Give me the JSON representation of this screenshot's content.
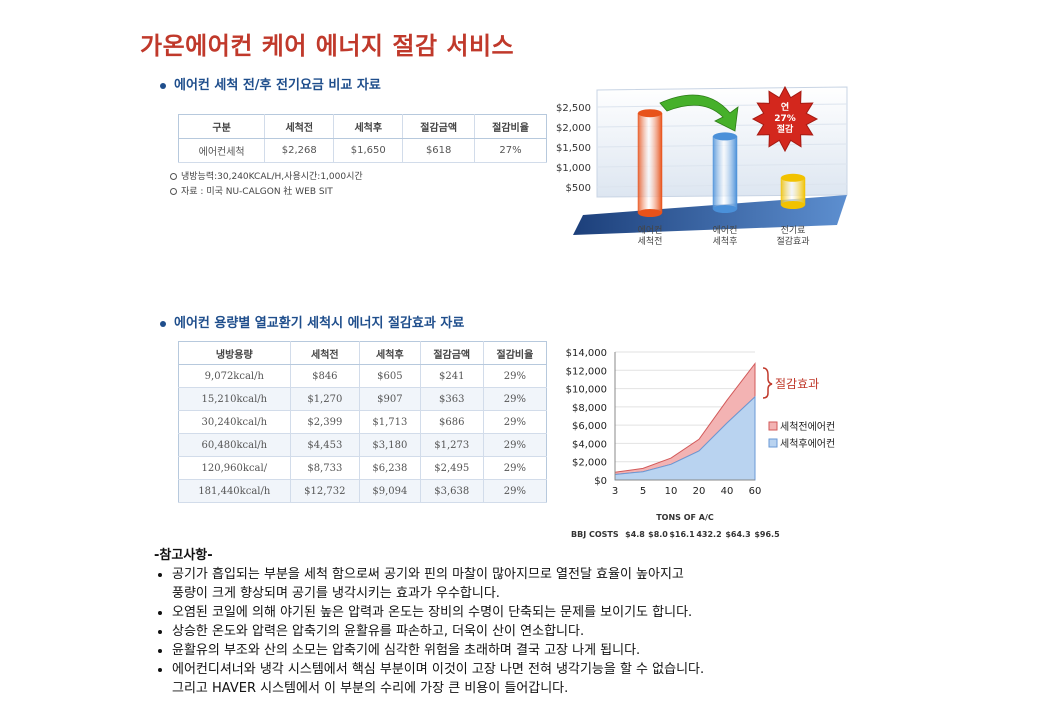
{
  "title": "가온에어컨 케어 에너지 절감 서비스",
  "section1": {
    "heading": "에어컨 세척 전/후 전기요금 비교 자료",
    "table": {
      "headers": [
        "구분",
        "세척전",
        "세척후",
        "절감금액",
        "절감비율"
      ],
      "rows": [
        [
          "에어컨세척",
          "$2,268",
          "$1,650",
          "$618",
          "27%"
        ]
      ]
    },
    "notes": [
      "냉방능력:30,240KCAL/H,사용시간:1,000시간",
      "자료 : 미국 NU-CALGON 社 WEB SIT"
    ]
  },
  "section2": {
    "heading": "에어컨 용량별 열교환기 세척시 에너지 절감효과 자료",
    "table": {
      "headers": [
        "냉방용량",
        "세척전",
        "세척후",
        "절감금액",
        "절감비율"
      ],
      "rows": [
        [
          "9,072kcal/h",
          "$846",
          "$605",
          "$241",
          "29%"
        ],
        [
          "15,210kcal/h",
          "$1,270",
          "$907",
          "$363",
          "29%"
        ],
        [
          "30,240kcal/h",
          "$2,399",
          "$1,713",
          "$686",
          "29%"
        ],
        [
          "60,480kcal/h",
          "$4,453",
          "$3,180",
          "$1,273",
          "29%"
        ],
        [
          "120,960kcal/",
          "$8,733",
          "$6,238",
          "$2,495",
          "29%"
        ],
        [
          "181,440kcal/h",
          "$12,732",
          "$9,094",
          "$3,638",
          "29%"
        ]
      ]
    }
  },
  "chart_data": [
    {
      "type": "bar",
      "categories": [
        "에어컨\n세척전",
        "에어컨\n세척후",
        "전기료\n절감효과"
      ],
      "values": [
        2268,
        1650,
        618
      ],
      "yticks": [
        "$500",
        "$1,000",
        "$1,500",
        "$2,000",
        "$2,500"
      ],
      "ylim": [
        0,
        2500
      ],
      "badge": [
        "연",
        "27%",
        "절감"
      ],
      "colors": [
        "#e8521a",
        "#4a90d9",
        "#f2c200"
      ]
    },
    {
      "type": "area",
      "x": [
        "3",
        "5",
        "10",
        "20",
        "40",
        "60"
      ],
      "series": [
        {
          "name": "세척전에어컨",
          "values": [
            846,
            1270,
            2399,
            4453,
            8733,
            12732
          ],
          "color": "#f3b3b3"
        },
        {
          "name": "세척후에어컨",
          "values": [
            605,
            907,
            1713,
            3180,
            6238,
            9094
          ],
          "color": "#b9d3f0"
        }
      ],
      "yticks": [
        "$0",
        "$2,000",
        "$4,000",
        "$6,000",
        "$8,000",
        "$10,000",
        "$12,000",
        "$14,000"
      ],
      "ylim": [
        0,
        14000
      ],
      "xlabel": "TONS OF A/C",
      "annotation": "절감효과",
      "bbj_label": "BBJ COSTS",
      "bbj_values": [
        "$4.8",
        "$8.0",
        "$16.1",
        "432.2",
        "$64.3",
        "$96.5"
      ]
    }
  ],
  "reference": {
    "title": "-참고사항-",
    "items": [
      [
        "공기가 흡입되는 부분을 세척 함으로써 공기와 핀의 마찰이 많아지므로 열전달 효율이 높아지고",
        "풍량이 크게 향상되며 공기를 냉각시키는 효과가 우수합니다."
      ],
      [
        "오염된 코일에 의해 야기된 높은 압력과 온도는 장비의 수명이 단축되는 문제를 보이기도 합니다."
      ],
      [
        "상승한 온도와 압력은 압축기의 윤활유를 파손하고, 더욱이 산이 연소합니다."
      ],
      [
        "윤활유의 부조와 산의 소모는 압축기에 심각한 위험을 초래하며 결국 고장 나게 됩니다."
      ],
      [
        "에어컨디셔너와 냉각 시스템에서 핵심 부분이며 이것이 고장 나면 전혀 냉각기능을 할 수 없습니다.",
        "그리고 HAVER 시스템에서 이 부분의 수리에 가장 큰 비용이 들어갑니다."
      ]
    ]
  }
}
